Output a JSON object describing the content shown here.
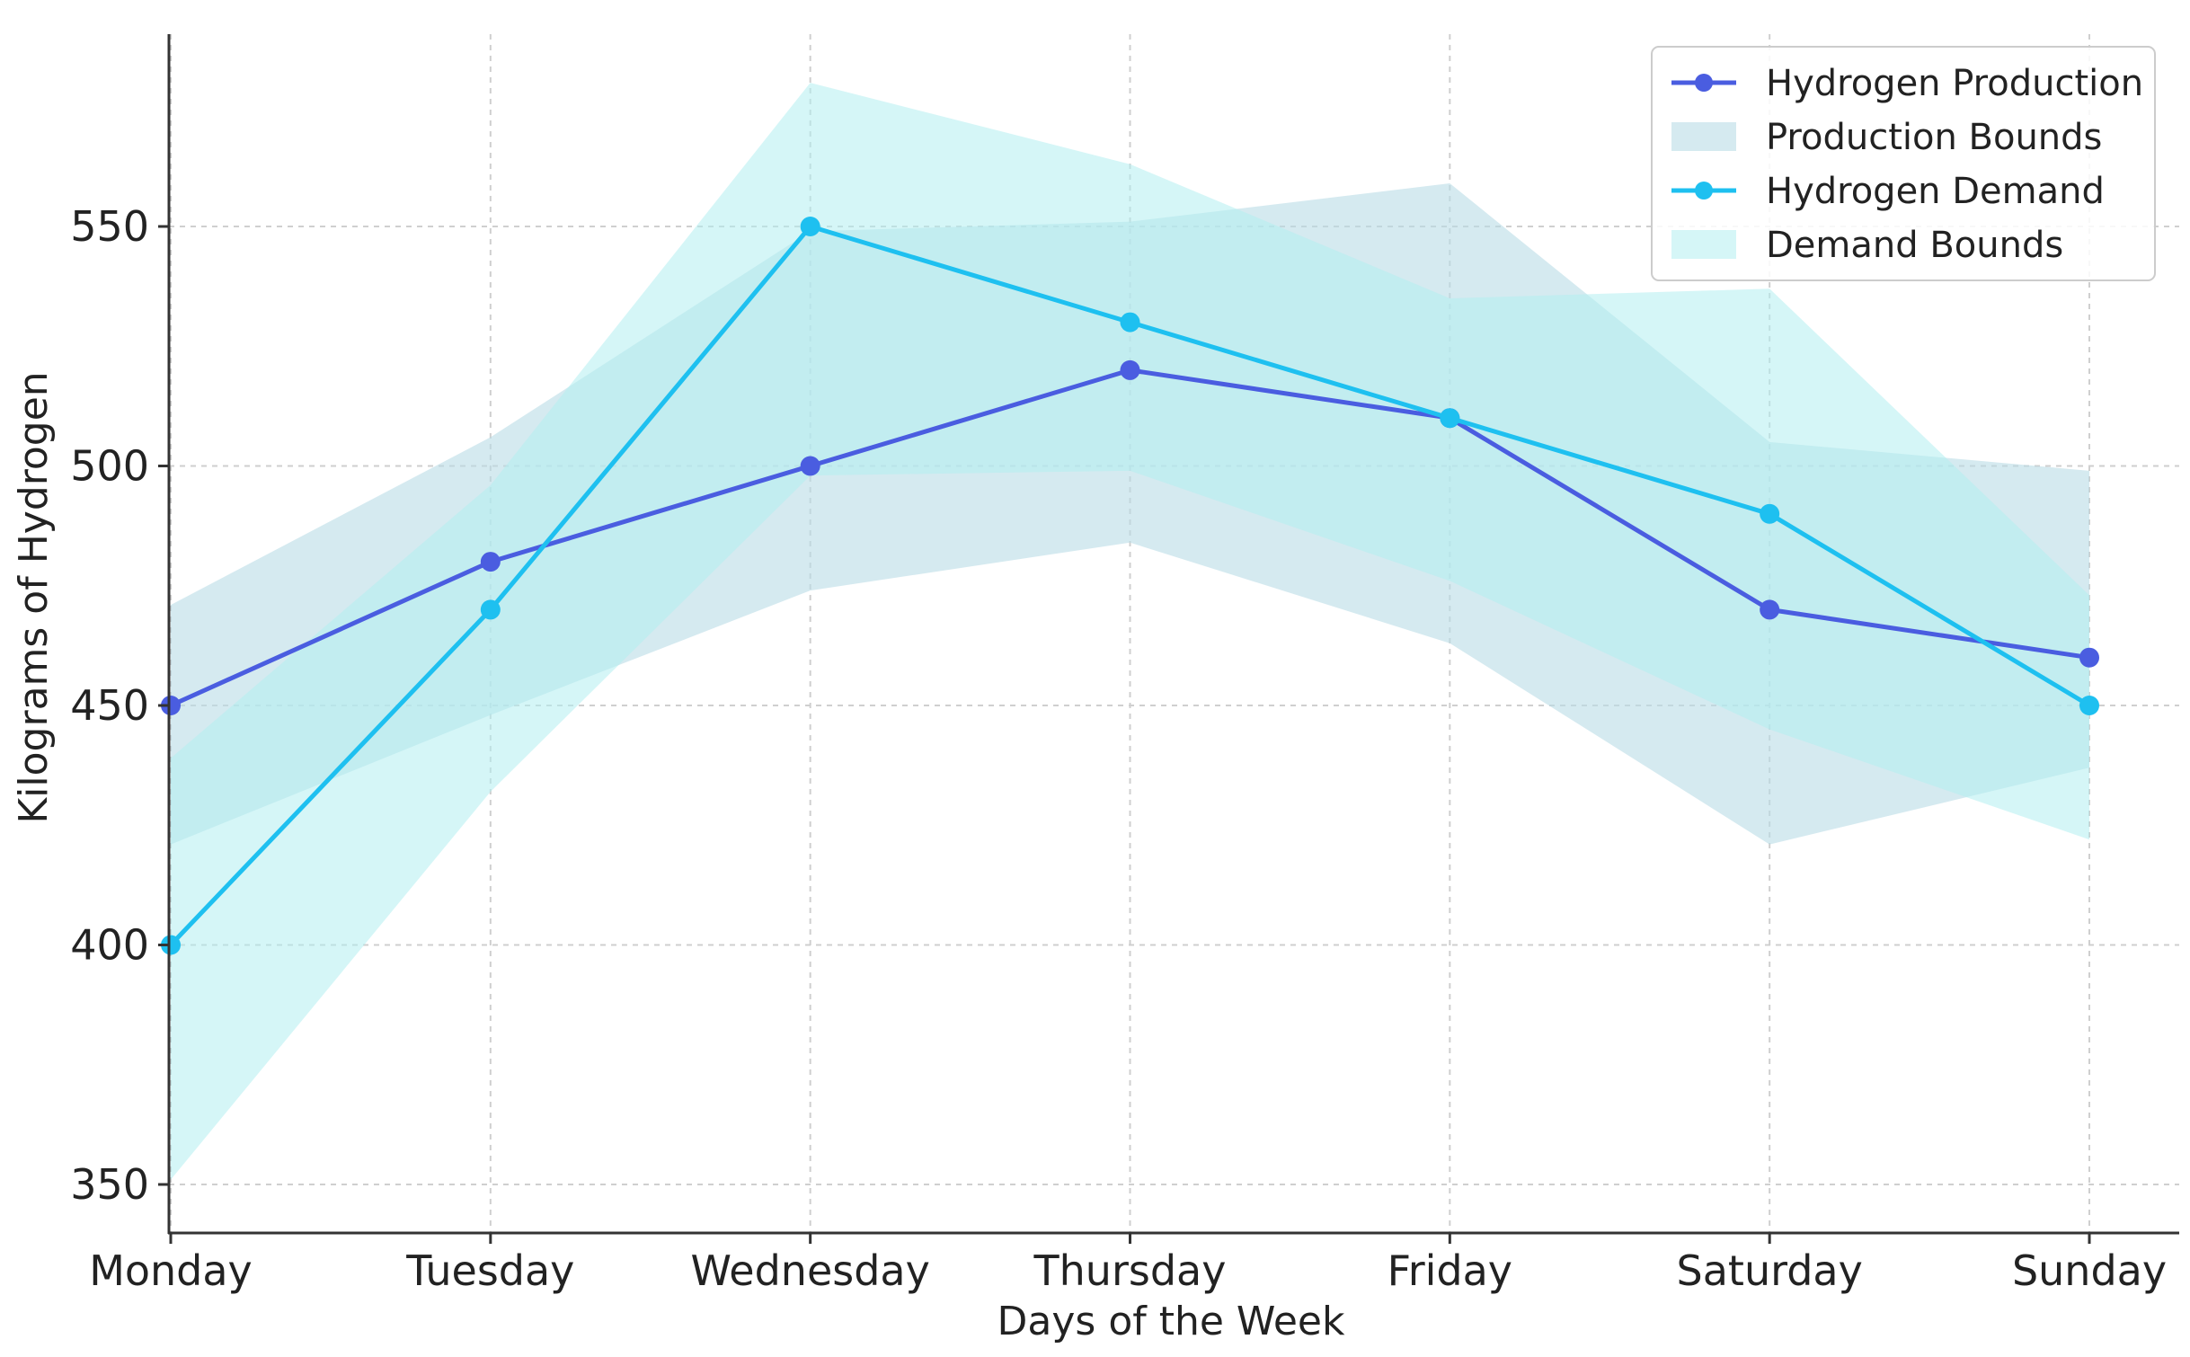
{
  "chart_data": {
    "type": "line",
    "title": "",
    "xlabel": "Days of the Week",
    "ylabel": "Kilograms of Hydrogen",
    "categories": [
      "Monday",
      "Tuesday",
      "Wednesday",
      "Thursday",
      "Friday",
      "Saturday",
      "Sunday"
    ],
    "ylim": [
      340,
      590
    ],
    "yticks": [
      350,
      400,
      450,
      500,
      550
    ],
    "grid": true,
    "legend_position": "top-right",
    "series": [
      {
        "name": "Hydrogen Production",
        "values": [
          450,
          480,
          500,
          520,
          510,
          470,
          460
        ],
        "color": "#4a5de0"
      },
      {
        "name": "Hydrogen Demand",
        "values": [
          400,
          470,
          550,
          530,
          510,
          490,
          450
        ],
        "color": "#1ec0f0"
      }
    ],
    "bands": [
      {
        "name": "Production Bounds",
        "lower": [
          421,
          448,
          474,
          484,
          463,
          421,
          437
        ],
        "upper": [
          471,
          506,
          549,
          551,
          559,
          505,
          499
        ],
        "color": "#b9dce6"
      },
      {
        "name": "Demand Bounds",
        "lower": [
          351,
          432,
          498,
          499,
          476,
          445,
          422
        ],
        "upper": [
          439,
          496,
          580,
          563,
          535,
          537,
          473
        ],
        "color": "#b3eef0"
      }
    ],
    "legend": [
      "Hydrogen Production",
      "Production Bounds",
      "Hydrogen Demand",
      "Demand Bounds"
    ]
  }
}
